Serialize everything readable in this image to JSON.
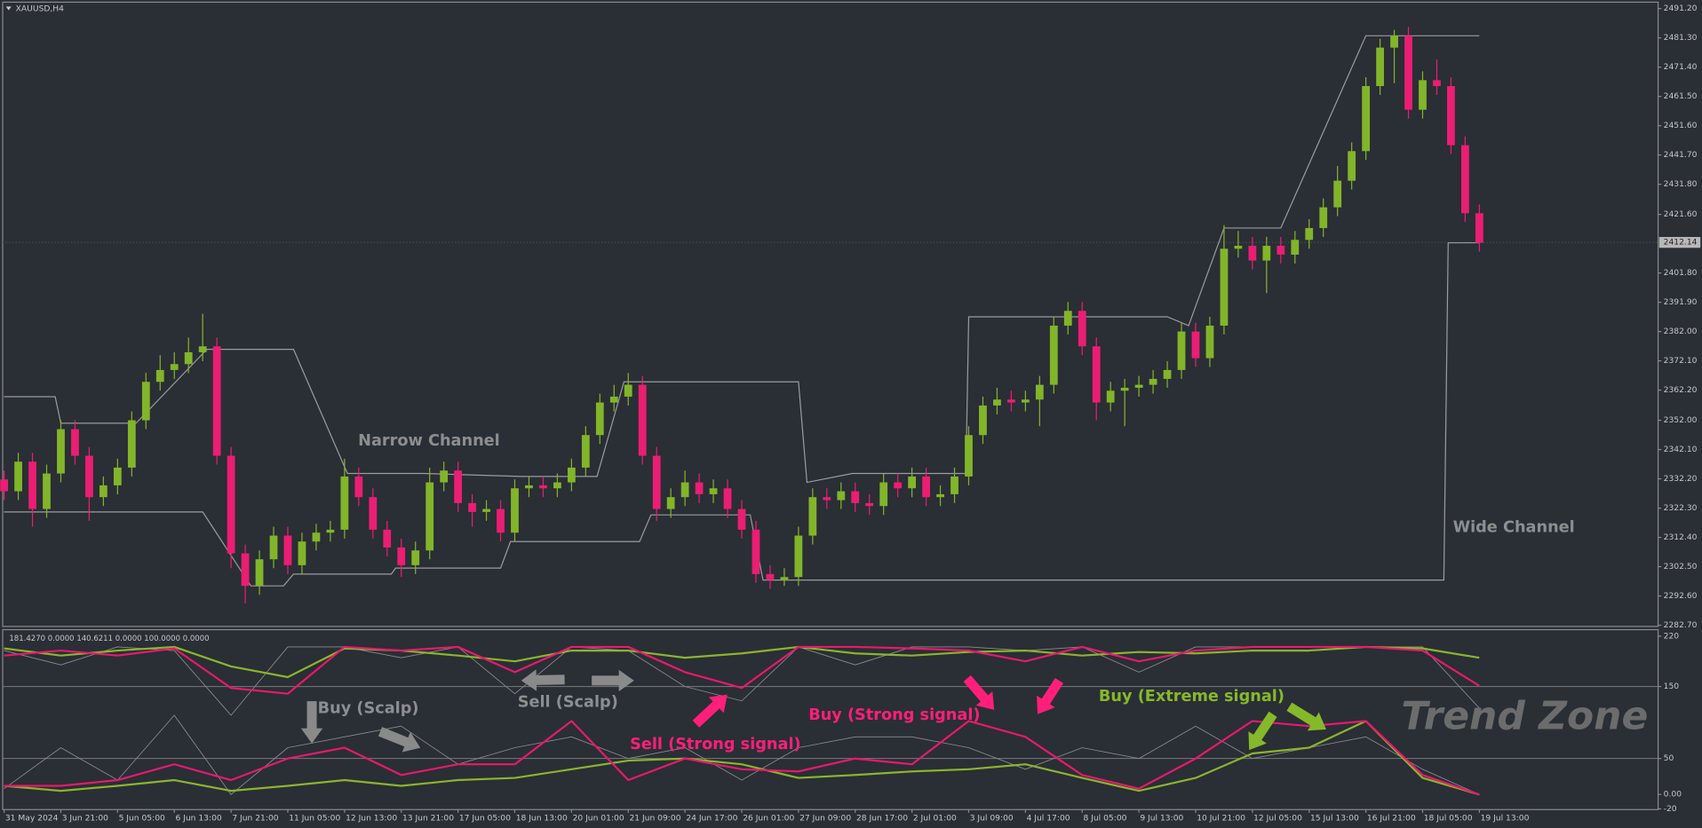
{
  "chart_data": [
    {
      "type": "candlestick",
      "title": "XAUUSD,H4",
      "xlim": [
        -0.1,
        116.6
      ],
      "ylim": [
        2282.3,
        2493.0
      ],
      "yticks": [
        {
          "value": 2491.2,
          "label": "2491.20"
        },
        {
          "value": 2481.3,
          "label": "2481.30"
        },
        {
          "value": 2471.4,
          "label": "2471.40"
        },
        {
          "value": 2461.5,
          "label": "2461.50"
        },
        {
          "value": 2451.6,
          "label": "2451.60"
        },
        {
          "value": 2441.7,
          "label": "2441.70"
        },
        {
          "value": 2431.8,
          "label": "2431.80"
        },
        {
          "value": 2421.6,
          "label": "2421.60"
        },
        {
          "value": 2401.8,
          "label": "2401.80"
        },
        {
          "value": 2391.9,
          "label": "2391.90"
        },
        {
          "value": 2382,
          "label": "2382.00"
        },
        {
          "value": 2372.1,
          "label": "2372.10"
        },
        {
          "value": 2362.2,
          "label": "2362.20"
        },
        {
          "value": 2352,
          "label": "2352.00"
        },
        {
          "value": 2342.1,
          "label": "2342.10"
        },
        {
          "value": 2332.2,
          "label": "2332.20"
        },
        {
          "value": 2322.3,
          "label": "2322.30"
        },
        {
          "value": 2312.4,
          "label": "2312.40"
        },
        {
          "value": 2302.5,
          "label": "2302.50"
        },
        {
          "value": 2292.6,
          "label": "2292.60"
        },
        {
          "value": 2282.7,
          "label": "2282.70"
        }
      ],
      "last_price": 2412.14,
      "up_color": "#82b52a",
      "down_color": "#ea1e73",
      "open": [
        2332,
        2328,
        2338,
        2322,
        2334,
        2349,
        2340,
        2326,
        2330,
        2336,
        2352,
        2365,
        2369,
        2371,
        2375,
        2377,
        2340,
        2307,
        2296,
        2305,
        2313,
        2303,
        2311,
        2314,
        2315,
        2333,
        2326,
        2315,
        2309,
        2303,
        2308,
        2331,
        2335,
        2324,
        2321,
        2322,
        2314,
        2329,
        2330,
        2329,
        2331,
        2336,
        2347,
        2358,
        2360,
        2364,
        2340,
        2322,
        2326,
        2331,
        2327,
        2329,
        2322,
        2315,
        2300,
        2298,
        2299,
        2313,
        2326,
        2325,
        2328,
        2324,
        2323,
        2331,
        2329,
        2333,
        2326,
        2327,
        2333,
        2347,
        2357,
        2359,
        2358,
        2359,
        2364,
        2384,
        2389,
        2377,
        2358,
        2362,
        2363,
        2364,
        2366,
        2369,
        2382,
        2373,
        2384,
        2410,
        2411,
        2406,
        2411,
        2408,
        2413,
        2417,
        2424,
        2433,
        2443,
        2465,
        2478,
        2482,
        2457,
        2467,
        2465,
        2445,
        2422
      ],
      "high": [
        2335,
        2341,
        2341,
        2337,
        2352,
        2352,
        2343,
        2333,
        2339,
        2355,
        2368,
        2374,
        2375,
        2380,
        2388,
        2380,
        2343,
        2310,
        2308,
        2316,
        2316,
        2314,
        2317,
        2318,
        2339,
        2336,
        2329,
        2318,
        2312,
        2311,
        2336,
        2338,
        2338,
        2327,
        2325,
        2325,
        2332,
        2333,
        2333,
        2334,
        2339,
        2350,
        2361,
        2364,
        2368,
        2367,
        2343,
        2329,
        2335,
        2334,
        2332,
        2332,
        2325,
        2318,
        2303,
        2302,
        2316,
        2329,
        2329,
        2331,
        2331,
        2327,
        2334,
        2334,
        2336,
        2336,
        2330,
        2336,
        2350,
        2360,
        2363,
        2362,
        2362,
        2367,
        2387,
        2392,
        2392,
        2380,
        2365,
        2366,
        2367,
        2369,
        2372,
        2385,
        2385,
        2387,
        2418,
        2416,
        2414,
        2414,
        2414,
        2416,
        2420,
        2427,
        2438,
        2446,
        2468,
        2481,
        2484,
        2485,
        2470,
        2474,
        2468,
        2448,
        2425
      ],
      "low": [
        2325,
        2325,
        2316,
        2319,
        2331,
        2337,
        2318,
        2323,
        2327,
        2333,
        2349,
        2362,
        2366,
        2368,
        2372,
        2337,
        2302,
        2290,
        2293,
        2302,
        2300,
        2300,
        2308,
        2311,
        2312,
        2323,
        2312,
        2306,
        2299,
        2300,
        2305,
        2328,
        2321,
        2316,
        2318,
        2311,
        2311,
        2326,
        2326,
        2326,
        2328,
        2333,
        2344,
        2355,
        2357,
        2337,
        2318,
        2319,
        2323,
        2324,
        2324,
        2319,
        2312,
        2297,
        2295,
        2296,
        2296,
        2310,
        2322,
        2322,
        2321,
        2320,
        2320,
        2326,
        2326,
        2323,
        2323,
        2324,
        2330,
        2344,
        2354,
        2355,
        2355,
        2350,
        2361,
        2381,
        2374,
        2352,
        2355,
        2350,
        2360,
        2361,
        2363,
        2366,
        2370,
        2370,
        2381,
        2407,
        2403,
        2395,
        2405,
        2405,
        2410,
        2414,
        2421,
        2430,
        2440,
        2462,
        2466,
        2454,
        2454,
        2462,
        2442,
        2419,
        2409
      ],
      "close": [
        2328,
        2338,
        2322,
        2334,
        2349,
        2340,
        2326,
        2330,
        2336,
        2352,
        2365,
        2369,
        2371,
        2375,
        2377,
        2340,
        2307,
        2296,
        2305,
        2313,
        2303,
        2311,
        2314,
        2315,
        2333,
        2326,
        2315,
        2309,
        2303,
        2308,
        2331,
        2335,
        2324,
        2321,
        2322,
        2314,
        2329,
        2330,
        2329,
        2331,
        2336,
        2347,
        2358,
        2360,
        2364,
        2340,
        2322,
        2326,
        2331,
        2327,
        2329,
        2322,
        2315,
        2300,
        2298,
        2299,
        2313,
        2326,
        2325,
        2328,
        2324,
        2323,
        2331,
        2329,
        2333,
        2326,
        2327,
        2333,
        2347,
        2357,
        2359,
        2358,
        2359,
        2364,
        2384,
        2389,
        2377,
        2358,
        2362,
        2363,
        2364,
        2366,
        2369,
        2382,
        2373,
        2384,
        2410,
        2411,
        2406,
        2411,
        2408,
        2413,
        2417,
        2424,
        2433,
        2443,
        2465,
        2478,
        2482,
        2457,
        2467,
        2465,
        2445,
        2422,
        2412
      ],
      "channel_color": "#9b9b9b",
      "channel": [
        {
          "x": [
            0,
            3.6,
            4,
            9.3,
            14.3,
            20.4,
            24.2,
            29.6,
            36.5,
            41.8,
            43.7,
            56,
            56.6,
            59.8,
            67.8,
            68,
            82,
            83.5,
            86,
            90,
            96,
            104
          ],
          "values": [
            2360,
            2360,
            2351,
            2351,
            2376,
            2376,
            2334,
            2334,
            2333,
            2333,
            2365,
            2365,
            2331,
            2334,
            2334,
            2387,
            2387,
            2384,
            2417,
            2417,
            2482,
            2482
          ]
        },
        {
          "x": [
            0,
            14,
            17.4,
            19.7,
            20.4,
            27.3,
            27.6,
            35,
            35.7,
            44.8,
            45.6,
            52.6,
            53.5,
            101.5,
            101.8,
            104
          ],
          "values": [
            2321,
            2321,
            2296,
            2296,
            2300,
            2300,
            2302,
            2302,
            2311,
            2311,
            2320,
            2320,
            2298,
            2298,
            2412,
            2412
          ]
        }
      ],
      "annotations": [
        "Narrow Channel",
        "Wide Channel"
      ]
    },
    {
      "type": "line",
      "title": "181.4270 0.0000 140.6211 0.0000 100.0000 0.0000",
      "xlim": [
        -0.1,
        116.6
      ],
      "ylim": [
        -21,
        229
      ],
      "yticks": [
        220,
        150,
        50,
        {
          "value": 0,
          "label": "0.00"
        },
        -20
      ],
      "levels": [
        150,
        50
      ],
      "xticks": [
        {
          "value": 0,
          "label": "31 May 2024"
        },
        {
          "value": 4,
          "label": "3 Jun 21:00"
        },
        {
          "value": 8,
          "label": "5 Jun 05:00"
        },
        {
          "value": 12,
          "label": "6 Jun 13:00"
        },
        {
          "value": 16,
          "label": "7 Jun 21:00"
        },
        {
          "value": 20,
          "label": "11 Jun 05:00"
        },
        {
          "value": 24,
          "label": "12 Jun 13:00"
        },
        {
          "value": 28,
          "label": "13 Jun 21:00"
        },
        {
          "value": 32,
          "label": "17 Jun 05:00"
        },
        {
          "value": 36,
          "label": "18 Jun 13:00"
        },
        {
          "value": 40,
          "label": "20 Jun 01:00"
        },
        {
          "value": 44,
          "label": "21 Jun 09:00"
        },
        {
          "value": 48,
          "label": "24 Jun 17:00"
        },
        {
          "value": 52,
          "label": "26 Jun 01:00"
        },
        {
          "value": 56,
          "label": "27 Jun 09:00"
        },
        {
          "value": 60,
          "label": "28 Jun 17:00"
        },
        {
          "value": 64,
          "label": "2 Jul 01:00"
        },
        {
          "value": 68,
          "label": "3 Jul 09:00"
        },
        {
          "value": 72,
          "label": "4 Jul 17:00"
        },
        {
          "value": 76,
          "label": "8 Jul 05:00"
        },
        {
          "value": 80,
          "label": "9 Jul 13:00"
        },
        {
          "value": 84,
          "label": "10 Jul 21:00"
        },
        {
          "value": 88,
          "label": "12 Jul 05:00"
        },
        {
          "value": 92,
          "label": "15 Jul 13:00"
        },
        {
          "value": 96,
          "label": "16 Jul 21:00"
        },
        {
          "value": 100,
          "label": "18 Jul 05:00"
        },
        {
          "value": 104,
          "label": "19 Jul 13:00"
        }
      ],
      "x": [
        0,
        4,
        8,
        12,
        16,
        20,
        24,
        28,
        32,
        36,
        40,
        44,
        48,
        52,
        56,
        60,
        64,
        68,
        72,
        76,
        80,
        84,
        88,
        92,
        96,
        100,
        104
      ],
      "series": [
        {
          "color": "#8c8c8c",
          "values": [
            200,
            180,
            205,
            200,
            110,
            205,
            205,
            190,
            205,
            140,
            205,
            200,
            150,
            130,
            205,
            180,
            205,
            205,
            200,
            205,
            170,
            205,
            205,
            205,
            205,
            205,
            120
          ]
        },
        {
          "color": "#8c8c8c",
          "values": [
            8,
            65,
            20,
            110,
            0,
            65,
            80,
            95,
            42,
            65,
            80,
            50,
            65,
            20,
            65,
            80,
            80,
            65,
            35,
            65,
            50,
            95,
            50,
            65,
            80,
            35,
            0
          ]
        },
        {
          "color": "#8ab52d",
          "values": [
            203,
            193,
            200,
            205,
            178,
            163,
            203,
            200,
            193,
            185,
            200,
            200,
            190,
            196,
            205,
            196,
            193,
            198,
            200,
            193,
            198,
            196,
            200,
            200,
            205,
            203,
            190
          ]
        },
        {
          "color": "#e8196e",
          "values": [
            193,
            200,
            193,
            203,
            148,
            140,
            205,
            200,
            205,
            170,
            205,
            205,
            170,
            148,
            205,
            205,
            203,
            200,
            185,
            205,
            185,
            200,
            205,
            205,
            205,
            200,
            151
          ]
        },
        {
          "color": "#8ab52d",
          "values": [
            12,
            5,
            12,
            20,
            5,
            12,
            20,
            12,
            20,
            23,
            35,
            47,
            50,
            42,
            23,
            27,
            32,
            35,
            42,
            23,
            5,
            23,
            57,
            65,
            102,
            23,
            0
          ]
        },
        {
          "color": "#e8196e",
          "values": [
            12,
            12,
            20,
            42,
            20,
            50,
            65,
            27,
            42,
            42,
            102,
            20,
            50,
            35,
            32,
            50,
            42,
            102,
            80,
            27,
            8,
            50,
            102,
            95,
            102,
            27,
            0
          ]
        }
      ],
      "annotations": [
        "Buy (Scalp)",
        "Sell (Scalp)",
        "Sell (Strong signal)",
        "Buy (Strong signal)",
        "Buy (Extreme signal)",
        "Trend Zone"
      ]
    }
  ]
}
